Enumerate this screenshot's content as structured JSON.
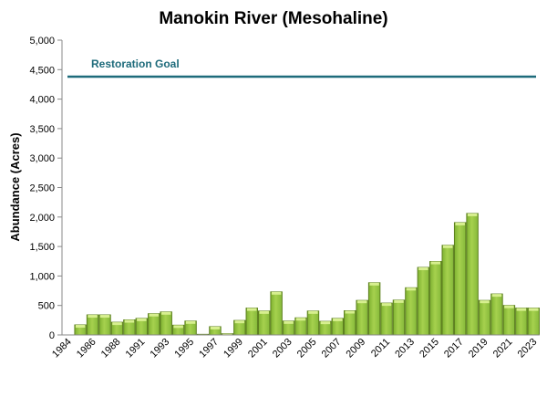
{
  "chart_data": {
    "type": "bar",
    "title": "Manokin River (Mesohaline)",
    "xlabel": "",
    "ylabel": "Abundance (Acres)",
    "ylim": [
      0,
      5000
    ],
    "ytick_step": 500,
    "ytick_labels": [
      "0",
      "500",
      "1,000",
      "1,500",
      "2,000",
      "2,500",
      "3,000",
      "3,500",
      "4,000",
      "4,500",
      "5,000"
    ],
    "grid": false,
    "categories": [
      "1984",
      "1985",
      "1986",
      "1987",
      "1988",
      "1989",
      "1991",
      "1992",
      "1993",
      "1994",
      "1995",
      "1996",
      "1997",
      "1998",
      "1999",
      "2000",
      "2001",
      "2002",
      "2003",
      "2004",
      "2005",
      "2006",
      "2007",
      "2008",
      "2009",
      "2010",
      "2011",
      "2012",
      "2013",
      "2014",
      "2015",
      "2016",
      "2017",
      "2018",
      "2019",
      "2020",
      "2021",
      "2022",
      "2023"
    ],
    "xtick_labels": [
      "1984",
      "1986",
      "1988",
      "1991",
      "1993",
      "1995",
      "1997",
      "1999",
      "2001",
      "2003",
      "2005",
      "2007",
      "2009",
      "2011",
      "2013",
      "2015",
      "2017",
      "2019",
      "2021",
      "2023"
    ],
    "values": [
      0,
      170,
      340,
      340,
      215,
      255,
      280,
      360,
      390,
      165,
      235,
      10,
      140,
      20,
      245,
      455,
      405,
      730,
      235,
      290,
      405,
      230,
      280,
      410,
      585,
      885,
      540,
      590,
      800,
      1145,
      1245,
      1520,
      1905,
      2060,
      585,
      695,
      500,
      455,
      455
    ],
    "reference_line": {
      "label": "Restoration Goal",
      "value": 4380,
      "color": "#1e6b7b"
    },
    "bar_color": "#8dc63f"
  }
}
